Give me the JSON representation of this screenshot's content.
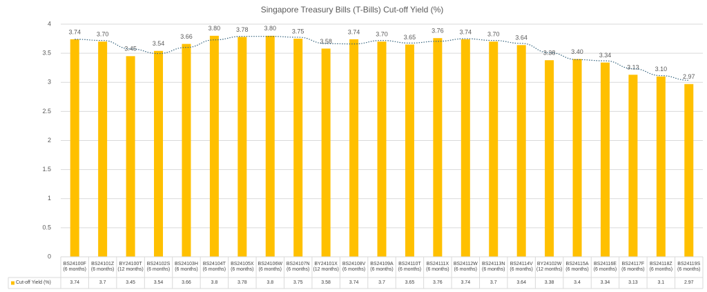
{
  "chart_data": {
    "type": "bar",
    "title": "Singapore Treasury Bills (T-Bills) Cut-off Yield (%)",
    "categories": [
      "BS24100F (6 months)",
      "BS24101Z (6 months)",
      "BY24100T (12 months)",
      "BS24102S (6 months)",
      "BS24103H (6 months)",
      "BS24104T (6 months)",
      "BS24105X (6 months)",
      "BS24106W (6 months)",
      "BS24107N (6 months)",
      "BY24101X (12 months)",
      "BS24108V (6 months)",
      "BS24109A (6 months)",
      "BS24110T (6 months)",
      "BS24111X (6 months)",
      "BS24112W (6 months)",
      "BS24113N (6 months)",
      "BS24114V (6 months)",
      "BY24102W (12 months)",
      "BS24115A (6 months)",
      "BS24116E (6 months)",
      "BS24117F (6 months)",
      "BS24118Z (6 months)",
      "BS24119S (6 months)"
    ],
    "series": [
      {
        "name": "Cut-off Yield (%)",
        "color": "#FFC000",
        "values": [
          3.74,
          3.7,
          3.45,
          3.54,
          3.66,
          3.8,
          3.78,
          3.8,
          3.75,
          3.58,
          3.74,
          3.7,
          3.65,
          3.76,
          3.74,
          3.7,
          3.64,
          3.38,
          3.4,
          3.34,
          3.13,
          3.1,
          2.97
        ],
        "value_labels": [
          "3.74",
          "3.70",
          "3.45",
          "3.54",
          "3.66",
          "3.80",
          "3.78",
          "3.80",
          "3.75",
          "3.58",
          "3.74",
          "3.70",
          "3.65",
          "3.76",
          "3.74",
          "3.70",
          "3.64",
          "3.38",
          "3.40",
          "3.34",
          "3.13",
          "3.10",
          "2.97"
        ]
      }
    ],
    "ylim": [
      0,
      4
    ],
    "yticks": [
      0,
      0.5,
      1,
      1.5,
      2,
      2.5,
      3,
      3.5,
      4
    ],
    "grid": true,
    "trendline": true,
    "data_table": true
  }
}
